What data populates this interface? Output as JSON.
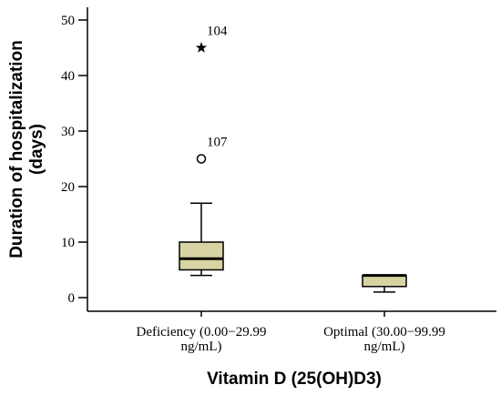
{
  "chart_data": {
    "type": "box",
    "ylabel": [
      "Duration of hospitalization",
      "(days)"
    ],
    "xlabel": "Vitamin D (25(OH)D3)",
    "ylim": [
      0,
      50
    ],
    "yticks": [
      0,
      10,
      20,
      30,
      40,
      50
    ],
    "categories": [
      [
        "Deficiency (0.00−29.99",
        "ng/mL)"
      ],
      [
        "Optimal (30.00−99.99",
        "ng/mL)"
      ]
    ],
    "boxes": [
      {
        "min": 4,
        "q1": 5,
        "median": 7,
        "q3": 10,
        "max": 17
      },
      {
        "min": 1,
        "q1": 2,
        "median": 4,
        "q3": 4,
        "max": 4
      }
    ],
    "outliers": [
      {
        "group": 0,
        "value": 25,
        "label": "107",
        "marker": "circle"
      },
      {
        "group": 0,
        "value": 45,
        "label": "104",
        "marker": "star"
      }
    ],
    "colors": {
      "box_fill": "#d8d3a2",
      "stroke": "#000000"
    }
  }
}
